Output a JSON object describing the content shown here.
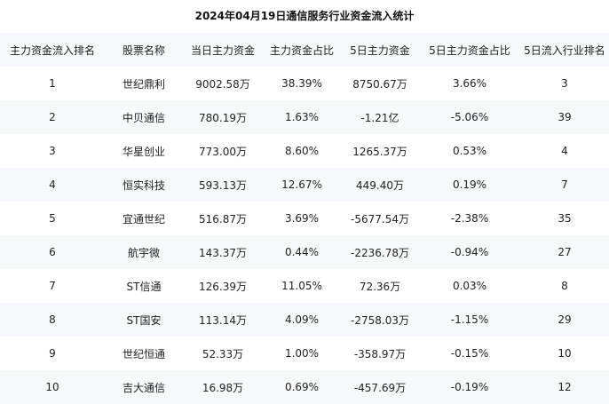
{
  "title": "2024年04月19日通信服务行业资金流入统计",
  "columns": [
    "主力资金流入排名",
    "股票名称",
    "当日主力资金",
    "主力资金占比",
    "5日主力资金",
    "5日主力资金占比",
    "5日流入行业排名"
  ],
  "rows": [
    [
      "1",
      "世纪鼎利",
      "9002.58万",
      "38.39%",
      "8750.67万",
      "3.66%",
      "3"
    ],
    [
      "2",
      "中贝通信",
      "780.19万",
      "1.63%",
      "-1.21亿",
      "-5.06%",
      "39"
    ],
    [
      "3",
      "华星创业",
      "773.00万",
      "8.60%",
      "1265.37万",
      "0.53%",
      "4"
    ],
    [
      "4",
      "恒实科技",
      "593.13万",
      "12.67%",
      "449.40万",
      "0.19%",
      "7"
    ],
    [
      "5",
      "宜通世纪",
      "516.87万",
      "3.69%",
      "-5677.54万",
      "-2.38%",
      "35"
    ],
    [
      "6",
      "航宇微",
      "143.37万",
      "0.44%",
      "-2236.78万",
      "-0.94%",
      "27"
    ],
    [
      "7",
      "ST信通",
      "126.39万",
      "11.05%",
      "72.36万",
      "0.03%",
      "8"
    ],
    [
      "8",
      "ST国安",
      "113.14万",
      "4.09%",
      "-2758.03万",
      "-1.15%",
      "29"
    ],
    [
      "9",
      "世纪恒通",
      "52.33万",
      "1.00%",
      "-358.97万",
      "-0.15%",
      "10"
    ],
    [
      "10",
      "吉大通信",
      "16.98万",
      "0.69%",
      "-457.69万",
      "-0.19%",
      "12"
    ]
  ]
}
